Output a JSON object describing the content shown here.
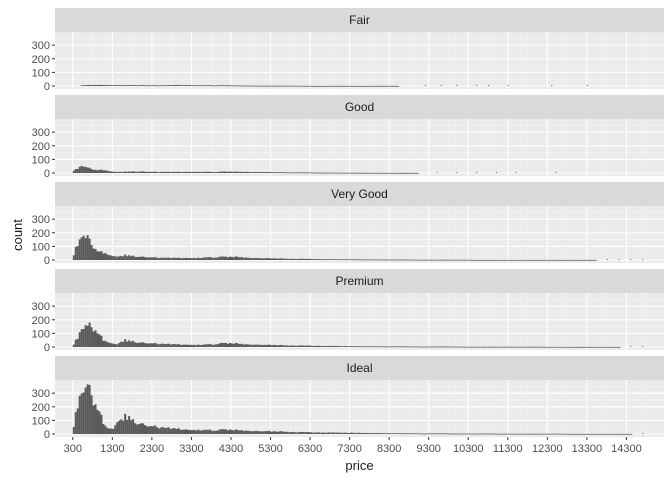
{
  "chart_data": {
    "type": "bar",
    "xlabel": "price",
    "ylabel": "count",
    "x_ticks": [
      300,
      1300,
      2300,
      3300,
      4300,
      5300,
      6300,
      7300,
      8300,
      9300,
      10300,
      11300,
      12300,
      13300,
      14300
    ],
    "y_ticks": [
      0,
      100,
      200,
      300
    ],
    "xlim": [
      -150,
      15250
    ],
    "ylim": [
      0,
      360
    ],
    "bar_color": "#595959",
    "panel_background": "#ebebeb",
    "strip_background": "#d9d9d9",
    "grid": true,
    "facet_layout": "stacked rows, shared x axis",
    "facets": [
      {
        "name": "Fair",
        "points": [
          [
            500,
            5
          ],
          [
            800,
            8
          ],
          [
            1100,
            7
          ],
          [
            1400,
            6
          ],
          [
            1800,
            6
          ],
          [
            2200,
            5
          ],
          [
            2600,
            5
          ],
          [
            2900,
            7
          ],
          [
            3200,
            6
          ],
          [
            3600,
            5
          ],
          [
            4000,
            5
          ],
          [
            4400,
            4
          ],
          [
            4800,
            3
          ],
          [
            5200,
            2
          ],
          [
            5600,
            2
          ],
          [
            5900,
            2
          ],
          [
            6200,
            1
          ],
          [
            6500,
            1
          ],
          [
            6800,
            1
          ],
          [
            7200,
            1
          ],
          [
            7500,
            1
          ],
          [
            7700,
            1
          ],
          [
            8500,
            1
          ]
        ],
        "sparse": [
          9200,
          9600,
          10000,
          10500,
          10800,
          11300,
          12400,
          13300
        ]
      },
      {
        "name": "Good",
        "points": [
          [
            300,
            20
          ],
          [
            400,
            35
          ],
          [
            500,
            50
          ],
          [
            600,
            42
          ],
          [
            700,
            33
          ],
          [
            800,
            28
          ],
          [
            900,
            22
          ],
          [
            1000,
            22
          ],
          [
            1100,
            20
          ],
          [
            1200,
            15
          ],
          [
            1300,
            10
          ],
          [
            1400,
            8
          ],
          [
            1600,
            10
          ],
          [
            1800,
            11
          ],
          [
            2000,
            10
          ],
          [
            2200,
            9
          ],
          [
            2600,
            8
          ],
          [
            3000,
            8
          ],
          [
            3400,
            9
          ],
          [
            3800,
            8
          ],
          [
            4200,
            10
          ],
          [
            4600,
            9
          ],
          [
            5000,
            8
          ],
          [
            5300,
            6
          ],
          [
            5600,
            5
          ],
          [
            6000,
            4
          ],
          [
            6500,
            3
          ],
          [
            7000,
            2
          ],
          [
            7500,
            2
          ],
          [
            8000,
            1
          ],
          [
            8600,
            1
          ],
          [
            9000,
            1
          ]
        ],
        "sparse": [
          9500,
          10000,
          10500,
          11000,
          11500,
          12500
        ]
      },
      {
        "name": "Very Good",
        "points": [
          [
            300,
            40
          ],
          [
            350,
            90
          ],
          [
            400,
            120
          ],
          [
            450,
            140
          ],
          [
            500,
            160
          ],
          [
            550,
            175
          ],
          [
            600,
            150
          ],
          [
            650,
            170
          ],
          [
            700,
            135
          ],
          [
            750,
            115
          ],
          [
            800,
            105
          ],
          [
            850,
            85
          ],
          [
            900,
            70
          ],
          [
            950,
            60
          ],
          [
            1000,
            55
          ],
          [
            1100,
            50
          ],
          [
            1200,
            40
          ],
          [
            1300,
            30
          ],
          [
            1400,
            25
          ],
          [
            1500,
            30
          ],
          [
            1600,
            35
          ],
          [
            1700,
            32
          ],
          [
            1800,
            28
          ],
          [
            1900,
            25
          ],
          [
            2000,
            22
          ],
          [
            2200,
            20
          ],
          [
            2400,
            18
          ],
          [
            2600,
            16
          ],
          [
            2800,
            15
          ],
          [
            3000,
            15
          ],
          [
            3200,
            15
          ],
          [
            3400,
            15
          ],
          [
            3600,
            17
          ],
          [
            3800,
            20
          ],
          [
            4000,
            22
          ],
          [
            4200,
            23
          ],
          [
            4400,
            24
          ],
          [
            4600,
            20
          ],
          [
            4800,
            17
          ],
          [
            5000,
            15
          ],
          [
            5200,
            13
          ],
          [
            5400,
            11
          ],
          [
            5600,
            10
          ],
          [
            5800,
            9
          ],
          [
            6000,
            8
          ],
          [
            6300,
            7
          ],
          [
            6600,
            6
          ],
          [
            6900,
            5
          ],
          [
            7200,
            5
          ],
          [
            7500,
            4
          ],
          [
            7800,
            4
          ],
          [
            8100,
            3
          ],
          [
            8400,
            3
          ],
          [
            8700,
            3
          ],
          [
            9000,
            2
          ],
          [
            9300,
            2
          ],
          [
            9600,
            2
          ],
          [
            9900,
            2
          ],
          [
            10200,
            2
          ],
          [
            10500,
            1
          ],
          [
            10800,
            1
          ],
          [
            11100,
            1
          ],
          [
            11400,
            1
          ],
          [
            11700,
            1
          ],
          [
            12000,
            1
          ],
          [
            12300,
            1
          ],
          [
            12600,
            1
          ],
          [
            12900,
            1
          ],
          [
            13200,
            1
          ],
          [
            13500,
            1
          ]
        ],
        "sparse": [
          13800,
          14100,
          14400,
          14700
        ]
      },
      {
        "name": "Premium",
        "points": [
          [
            300,
            20
          ],
          [
            350,
            50
          ],
          [
            400,
            70
          ],
          [
            450,
            100
          ],
          [
            500,
            125
          ],
          [
            550,
            130
          ],
          [
            600,
            150
          ],
          [
            650,
            145
          ],
          [
            700,
            155
          ],
          [
            750,
            150
          ],
          [
            800,
            140
          ],
          [
            850,
            130
          ],
          [
            900,
            110
          ],
          [
            950,
            90
          ],
          [
            1000,
            70
          ],
          [
            1050,
            50
          ],
          [
            1100,
            45
          ],
          [
            1150,
            40
          ],
          [
            1200,
            35
          ],
          [
            1300,
            25
          ],
          [
            1400,
            20
          ],
          [
            1500,
            40
          ],
          [
            1600,
            50
          ],
          [
            1700,
            45
          ],
          [
            1800,
            40
          ],
          [
            1900,
            35
          ],
          [
            2000,
            30
          ],
          [
            2200,
            28
          ],
          [
            2400,
            25
          ],
          [
            2600,
            22
          ],
          [
            2800,
            20
          ],
          [
            3000,
            18
          ],
          [
            3200,
            17
          ],
          [
            3400,
            16
          ],
          [
            3600,
            17
          ],
          [
            3800,
            20
          ],
          [
            4000,
            25
          ],
          [
            4200,
            28
          ],
          [
            4400,
            27
          ],
          [
            4600,
            22
          ],
          [
            4800,
            20
          ],
          [
            5000,
            18
          ],
          [
            5200,
            16
          ],
          [
            5400,
            14
          ],
          [
            5600,
            12
          ],
          [
            5800,
            11
          ],
          [
            6000,
            10
          ],
          [
            6300,
            9
          ],
          [
            6600,
            8
          ],
          [
            6900,
            7
          ],
          [
            7200,
            6
          ],
          [
            7500,
            5
          ],
          [
            7800,
            5
          ],
          [
            8100,
            4
          ],
          [
            8400,
            4
          ],
          [
            8700,
            4
          ],
          [
            9000,
            3
          ],
          [
            9300,
            3
          ],
          [
            9600,
            3
          ],
          [
            9900,
            3
          ],
          [
            10200,
            2
          ],
          [
            10500,
            2
          ],
          [
            10800,
            2
          ],
          [
            11100,
            2
          ],
          [
            11400,
            2
          ],
          [
            11700,
            2
          ],
          [
            12000,
            2
          ],
          [
            12300,
            1
          ],
          [
            12600,
            1
          ],
          [
            12900,
            1
          ],
          [
            13200,
            1
          ],
          [
            13500,
            1
          ],
          [
            13800,
            1
          ],
          [
            14100,
            1
          ]
        ],
        "sparse": [
          14400,
          14700
        ]
      },
      {
        "name": "Ideal",
        "points": [
          [
            300,
            60
          ],
          [
            350,
            150
          ],
          [
            400,
            220
          ],
          [
            450,
            260
          ],
          [
            500,
            285
          ],
          [
            550,
            300
          ],
          [
            600,
            320
          ],
          [
            650,
            340
          ],
          [
            700,
            310
          ],
          [
            750,
            295
          ],
          [
            800,
            260
          ],
          [
            850,
            230
          ],
          [
            900,
            195
          ],
          [
            950,
            160
          ],
          [
            1000,
            120
          ],
          [
            1050,
            80
          ],
          [
            1100,
            60
          ],
          [
            1150,
            50
          ],
          [
            1200,
            45
          ],
          [
            1300,
            40
          ],
          [
            1400,
            90
          ],
          [
            1500,
            110
          ],
          [
            1600,
            130
          ],
          [
            1700,
            120
          ],
          [
            1800,
            95
          ],
          [
            1900,
            80
          ],
          [
            2000,
            70
          ],
          [
            2200,
            60
          ],
          [
            2400,
            52
          ],
          [
            2600,
            45
          ],
          [
            2800,
            40
          ],
          [
            3000,
            35
          ],
          [
            3200,
            32
          ],
          [
            3400,
            30
          ],
          [
            3600,
            28
          ],
          [
            3800,
            28
          ],
          [
            4000,
            30
          ],
          [
            4200,
            32
          ],
          [
            4400,
            30
          ],
          [
            4600,
            27
          ],
          [
            4800,
            25
          ],
          [
            5000,
            23
          ],
          [
            5200,
            21
          ],
          [
            5400,
            19
          ],
          [
            5600,
            17
          ],
          [
            5800,
            15
          ],
          [
            6000,
            13
          ],
          [
            6300,
            12
          ],
          [
            6600,
            11
          ],
          [
            6900,
            10
          ],
          [
            7200,
            9
          ],
          [
            7500,
            8
          ],
          [
            7800,
            7
          ],
          [
            8100,
            6
          ],
          [
            8400,
            5
          ],
          [
            8700,
            5
          ],
          [
            9000,
            4
          ],
          [
            9300,
            4
          ],
          [
            9600,
            4
          ],
          [
            9900,
            3
          ],
          [
            10200,
            3
          ],
          [
            10500,
            3
          ],
          [
            10800,
            3
          ],
          [
            11100,
            2
          ],
          [
            11400,
            2
          ],
          [
            11700,
            2
          ],
          [
            12000,
            2
          ],
          [
            12300,
            2
          ],
          [
            12600,
            2
          ],
          [
            12900,
            1
          ],
          [
            13200,
            1
          ],
          [
            13500,
            1
          ],
          [
            13800,
            1
          ],
          [
            14100,
            1
          ],
          [
            14400,
            1
          ]
        ],
        "sparse": [
          14700
        ]
      }
    ]
  }
}
